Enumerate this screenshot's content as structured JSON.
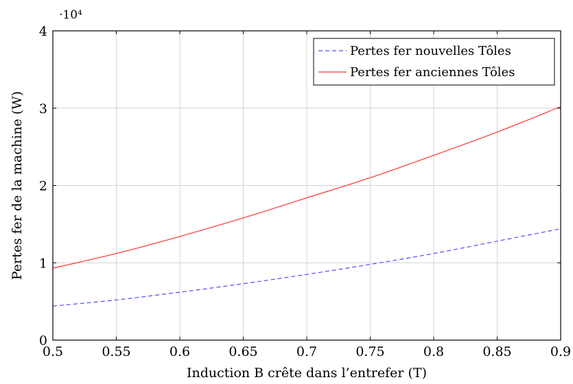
{
  "chart_data": {
    "type": "line",
    "xlabel": "Induction B crête dans l’entrefer (T)",
    "ylabel": "Pertes fer de la machine (W)",
    "y_multiplier_label": "·10⁴",
    "xlim": [
      0.5,
      0.9
    ],
    "ylim": [
      0,
      4
    ],
    "xticks": [
      "0.5",
      "0.55",
      "0.6",
      "0.65",
      "0.7",
      "0.75",
      "0.8",
      "0.85",
      "0.9"
    ],
    "yticks": [
      "0",
      "1",
      "2",
      "3",
      "4"
    ],
    "grid": true,
    "legend_position": "top-right",
    "x": [
      0.5,
      0.55,
      0.6,
      0.65,
      0.7,
      0.75,
      0.8,
      0.85,
      0.9
    ],
    "series": [
      {
        "name": "Pertes fer nouvelles Tôles",
        "color": "#4d4dff",
        "style": "dashed",
        "values": [
          0.44,
          0.52,
          0.62,
          0.73,
          0.85,
          0.98,
          1.12,
          1.28,
          1.44
        ]
      },
      {
        "name": "Pertes fer anciennes Tôles",
        "color": "#ff3333",
        "style": "solid",
        "values": [
          0.93,
          1.12,
          1.34,
          1.58,
          1.84,
          2.1,
          2.39,
          2.69,
          3.02
        ]
      }
    ]
  }
}
